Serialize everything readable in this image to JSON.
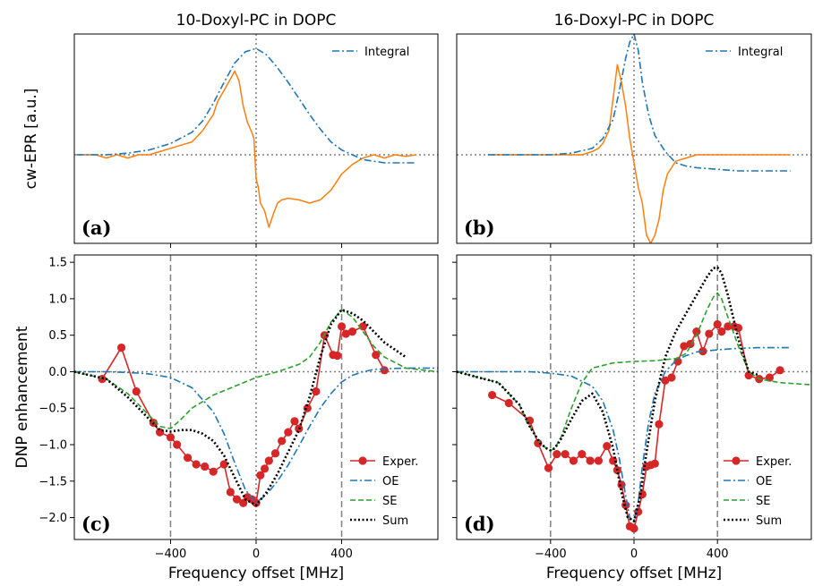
{
  "colors": {
    "exp": "#d62728",
    "oe": "#1f77b4",
    "se": "#2ca02c",
    "sum": "#000000",
    "cw": "#ff7f0e",
    "integral": "#1f77b4",
    "guide": "#808080"
  },
  "titles": [
    "10-Doxyl-PC in DOPC",
    "16-Doxyl-PC in DOPC"
  ],
  "ylabel_top": "cw-EPR [a.u.]",
  "ylabel_bottom": "DNP enhancement",
  "xlabel": "Frequency offset  [MHz]",
  "panel_labels": [
    "(a)",
    "(b)",
    "(c)",
    "(d)"
  ],
  "x_ticks": [
    "−400",
    "0",
    "400"
  ],
  "y_ticks": [
    "1.5",
    "1.0",
    "0.5",
    "0.0",
    "−0.5",
    "−1.0",
    "−1.5",
    "−2.0"
  ],
  "legend_top": "Integral",
  "legend_bottom": [
    "Exper.",
    "OE",
    "SE",
    "Sum"
  ],
  "chart_data": [
    {
      "type": "line",
      "panel": "(a)",
      "title": "10-Doxyl-PC in DOPC",
      "ylabel": "cw-EPR [a.u.]",
      "xlim": [
        -850,
        850
      ],
      "ylim": [
        -0.55,
        0.75
      ],
      "grid": false,
      "legend_position": "top-right",
      "series": [
        {
          "name": "",
          "x": [
            -840,
            -800,
            -750,
            -700,
            -650,
            -600,
            -550,
            -500,
            -450,
            -400,
            -350,
            -300,
            -250,
            -200,
            -180,
            -150,
            -120,
            -100,
            -80,
            -60,
            -40,
            -20,
            -10,
            0,
            10,
            20,
            40,
            60,
            80,
            100,
            120,
            150,
            200,
            250,
            300,
            350,
            400,
            450,
            500,
            550,
            600,
            650,
            700,
            750
          ],
          "y": [
            0.0,
            0.0,
            0.0,
            -0.02,
            0.0,
            -0.02,
            0.0,
            0.0,
            0.02,
            0.04,
            0.06,
            0.08,
            0.15,
            0.25,
            0.33,
            0.4,
            0.47,
            0.52,
            0.46,
            0.3,
            0.2,
            0.14,
            0.1,
            -0.15,
            -0.2,
            -0.3,
            -0.35,
            -0.45,
            -0.37,
            -0.3,
            -0.28,
            -0.27,
            -0.28,
            -0.3,
            -0.28,
            -0.22,
            -0.12,
            -0.06,
            -0.02,
            0.0,
            -0.02,
            0.0,
            -0.01,
            0.0
          ]
        },
        {
          "name": "Integral",
          "x": [
            -840,
            -700,
            -600,
            -500,
            -400,
            -300,
            -250,
            -200,
            -150,
            -100,
            -50,
            0,
            50,
            100,
            150,
            200,
            250,
            300,
            350,
            400,
            450,
            500,
            550,
            600,
            700,
            750
          ],
          "y": [
            0.0,
            0.0,
            0.01,
            0.03,
            0.07,
            0.14,
            0.21,
            0.32,
            0.45,
            0.57,
            0.64,
            0.66,
            0.62,
            0.54,
            0.45,
            0.35,
            0.25,
            0.16,
            0.08,
            0.03,
            0.0,
            -0.03,
            -0.04,
            -0.05,
            -0.05,
            -0.05
          ]
        }
      ]
    },
    {
      "type": "line",
      "panel": "(b)",
      "title": "16-Doxyl-PC in DOPC",
      "xlim": [
        -850,
        850
      ],
      "ylim": [
        -0.55,
        0.75
      ],
      "grid": false,
      "legend_position": "top-right",
      "series": [
        {
          "name": "",
          "x": [
            -700,
            -600,
            -500,
            -400,
            -300,
            -250,
            -200,
            -170,
            -150,
            -120,
            -100,
            -80,
            -60,
            -40,
            -20,
            0,
            20,
            40,
            60,
            80,
            100,
            120,
            140,
            160,
            180,
            200,
            250,
            300,
            350,
            400,
            500,
            600,
            700,
            750
          ],
          "y": [
            0.0,
            0.0,
            0.0,
            0.0,
            0.0,
            0.0,
            0.02,
            0.04,
            0.07,
            0.15,
            0.35,
            0.56,
            0.45,
            0.3,
            0.1,
            -0.05,
            -0.2,
            -0.3,
            -0.5,
            -0.55,
            -0.5,
            -0.4,
            -0.22,
            -0.12,
            -0.08,
            -0.04,
            -0.02,
            0.0,
            0.0,
            0.0,
            0.0,
            0.0,
            0.0,
            0.0
          ]
        },
        {
          "name": "Integral",
          "x": [
            -700,
            -400,
            -300,
            -200,
            -150,
            -100,
            -70,
            -40,
            -20,
            0,
            20,
            40,
            70,
            100,
            150,
            200,
            250,
            300,
            400,
            500,
            600,
            750
          ],
          "y": [
            0.0,
            0.0,
            0.01,
            0.04,
            0.1,
            0.22,
            0.4,
            0.6,
            0.7,
            0.75,
            0.65,
            0.45,
            0.25,
            0.12,
            0.02,
            -0.05,
            -0.07,
            -0.08,
            -0.09,
            -0.1,
            -0.1,
            -0.1
          ]
        }
      ]
    },
    {
      "type": "line",
      "panel": "(c)",
      "xlabel": "Frequency offset  [MHz]",
      "ylabel": "DNP enhancement",
      "xlim": [
        -850,
        850
      ],
      "ylim": [
        -2.3,
        1.6
      ],
      "grid": false,
      "legend_position": "bottom-right",
      "series": [
        {
          "name": "Exper.",
          "x": [
            -720,
            -630,
            -560,
            -480,
            -450,
            -400,
            -370,
            -320,
            -280,
            -240,
            -200,
            -150,
            -120,
            -90,
            -60,
            -40,
            -20,
            0,
            20,
            40,
            60,
            90,
            120,
            150,
            180,
            200,
            240,
            280,
            320,
            360,
            380,
            400,
            420,
            450,
            500,
            560,
            600
          ],
          "y": [
            -0.1,
            0.33,
            -0.27,
            -0.7,
            -0.83,
            -0.9,
            -1.0,
            -1.18,
            -1.27,
            -1.3,
            -1.37,
            -1.27,
            -1.65,
            -1.75,
            -1.8,
            -1.72,
            -1.75,
            -1.8,
            -1.42,
            -1.33,
            -1.22,
            -1.12,
            -0.95,
            -0.83,
            -0.68,
            -0.78,
            -0.5,
            -0.27,
            0.5,
            0.23,
            0.22,
            0.62,
            0.52,
            0.55,
            0.62,
            0.23,
            0.02
          ]
        },
        {
          "name": "OE",
          "x": [
            -850,
            -700,
            -600,
            -500,
            -400,
            -300,
            -200,
            -150,
            -100,
            -50,
            0,
            50,
            100,
            150,
            200,
            250,
            300,
            350,
            400,
            450,
            500,
            550,
            600,
            700,
            850
          ],
          "y": [
            0.0,
            0.0,
            -0.01,
            -0.03,
            -0.08,
            -0.22,
            -0.55,
            -0.85,
            -1.25,
            -1.62,
            -1.8,
            -1.68,
            -1.5,
            -1.28,
            -1.02,
            -0.75,
            -0.5,
            -0.3,
            -0.14,
            -0.05,
            0.0,
            0.03,
            0.04,
            0.05,
            0.05
          ]
        },
        {
          "name": "SE",
          "x": [
            -850,
            -700,
            -600,
            -500,
            -450,
            -400,
            -350,
            -300,
            -200,
            -100,
            0,
            100,
            200,
            250,
            300,
            350,
            400,
            450,
            500,
            550,
            600,
            700,
            850
          ],
          "y": [
            0.0,
            -0.1,
            -0.3,
            -0.6,
            -0.75,
            -0.78,
            -0.65,
            -0.5,
            -0.32,
            -0.2,
            -0.08,
            0.0,
            0.1,
            0.2,
            0.4,
            0.68,
            0.85,
            0.75,
            0.55,
            0.35,
            0.2,
            0.05,
            0.0
          ]
        },
        {
          "name": "Sum",
          "x": [
            -850,
            -700,
            -600,
            -500,
            -450,
            -400,
            -350,
            -300,
            -250,
            -200,
            -150,
            -100,
            -50,
            0,
            50,
            100,
            150,
            200,
            250,
            300,
            350,
            400,
            450,
            500,
            550,
            600,
            700
          ],
          "y": [
            0.0,
            -0.1,
            -0.35,
            -0.65,
            -0.8,
            -0.82,
            -0.8,
            -0.8,
            -0.85,
            -0.95,
            -1.15,
            -1.45,
            -1.75,
            -1.83,
            -1.65,
            -1.4,
            -1.1,
            -0.8,
            -0.35,
            0.2,
            0.65,
            0.85,
            0.8,
            0.7,
            0.55,
            0.4,
            0.2
          ]
        }
      ]
    },
    {
      "type": "line",
      "panel": "(d)",
      "xlabel": "Frequency offset  [MHz]",
      "xlim": [
        -850,
        850
      ],
      "ylim": [
        -2.3,
        1.6
      ],
      "grid": false,
      "legend_position": "bottom-right",
      "series": [
        {
          "name": "Exper.",
          "x": [
            -680,
            -600,
            -500,
            -460,
            -410,
            -370,
            -330,
            -290,
            -250,
            -210,
            -170,
            -130,
            -100,
            -80,
            -60,
            -40,
            -20,
            0,
            20,
            40,
            60,
            80,
            100,
            120,
            150,
            180,
            210,
            240,
            270,
            300,
            330,
            360,
            400,
            420,
            450,
            480,
            500,
            550,
            600,
            650,
            700
          ],
          "y": [
            -0.32,
            -0.43,
            -0.67,
            -0.98,
            -1.32,
            -1.13,
            -1.13,
            -1.22,
            -1.13,
            -1.22,
            -1.22,
            -1.02,
            -1.22,
            -1.35,
            -1.55,
            -1.83,
            -2.12,
            -2.15,
            -1.92,
            -1.68,
            -1.3,
            -1.28,
            -1.26,
            -0.72,
            -0.12,
            -0.08,
            0.14,
            0.35,
            0.38,
            0.55,
            0.28,
            0.52,
            0.65,
            0.55,
            0.62,
            0.62,
            0.6,
            -0.05,
            -0.1,
            -0.08,
            0.02
          ]
        },
        {
          "name": "OE",
          "x": [
            -850,
            -500,
            -400,
            -300,
            -200,
            -150,
            -100,
            -70,
            -40,
            -20,
            0,
            20,
            40,
            70,
            100,
            150,
            200,
            250,
            300,
            400,
            500,
            600,
            750
          ],
          "y": [
            0.0,
            0.0,
            -0.02,
            -0.06,
            -0.2,
            -0.4,
            -0.8,
            -1.2,
            -1.7,
            -2.0,
            -2.05,
            -1.8,
            -1.3,
            -0.7,
            -0.3,
            0.0,
            0.15,
            0.22,
            0.27,
            0.3,
            0.32,
            0.33,
            0.33
          ]
        },
        {
          "name": "SE",
          "x": [
            -850,
            -650,
            -550,
            -500,
            -450,
            -420,
            -400,
            -380,
            -350,
            -300,
            -250,
            -200,
            -100,
            0,
            100,
            200,
            250,
            300,
            350,
            380,
            400,
            420,
            450,
            500,
            550,
            600,
            700,
            850
          ],
          "y": [
            0.0,
            -0.15,
            -0.45,
            -0.75,
            -0.98,
            -1.05,
            -1.08,
            -1.05,
            -0.9,
            -0.5,
            -0.15,
            0.05,
            0.12,
            0.14,
            0.15,
            0.18,
            0.25,
            0.5,
            0.85,
            1.02,
            1.08,
            1.0,
            0.75,
            0.35,
            0.0,
            -0.1,
            -0.15,
            -0.18
          ]
        },
        {
          "name": "Sum",
          "x": [
            -850,
            -650,
            -550,
            -500,
            -450,
            -420,
            -400,
            -380,
            -350,
            -300,
            -250,
            -200,
            -150,
            -100,
            -60,
            -30,
            0,
            30,
            60,
            100,
            150,
            200,
            250,
            300,
            350,
            380,
            400,
            420,
            450,
            500,
            550,
            600
          ],
          "y": [
            0.0,
            -0.15,
            -0.45,
            -0.75,
            -0.98,
            -1.05,
            -1.08,
            -1.05,
            -0.92,
            -0.65,
            -0.4,
            -0.3,
            -0.55,
            -1.05,
            -1.65,
            -2.0,
            -2.05,
            -1.7,
            -1.1,
            -0.4,
            0.2,
            0.55,
            0.8,
            1.05,
            1.3,
            1.42,
            1.43,
            1.35,
            1.05,
            0.45,
            0.0,
            -0.05
          ]
        }
      ]
    }
  ]
}
